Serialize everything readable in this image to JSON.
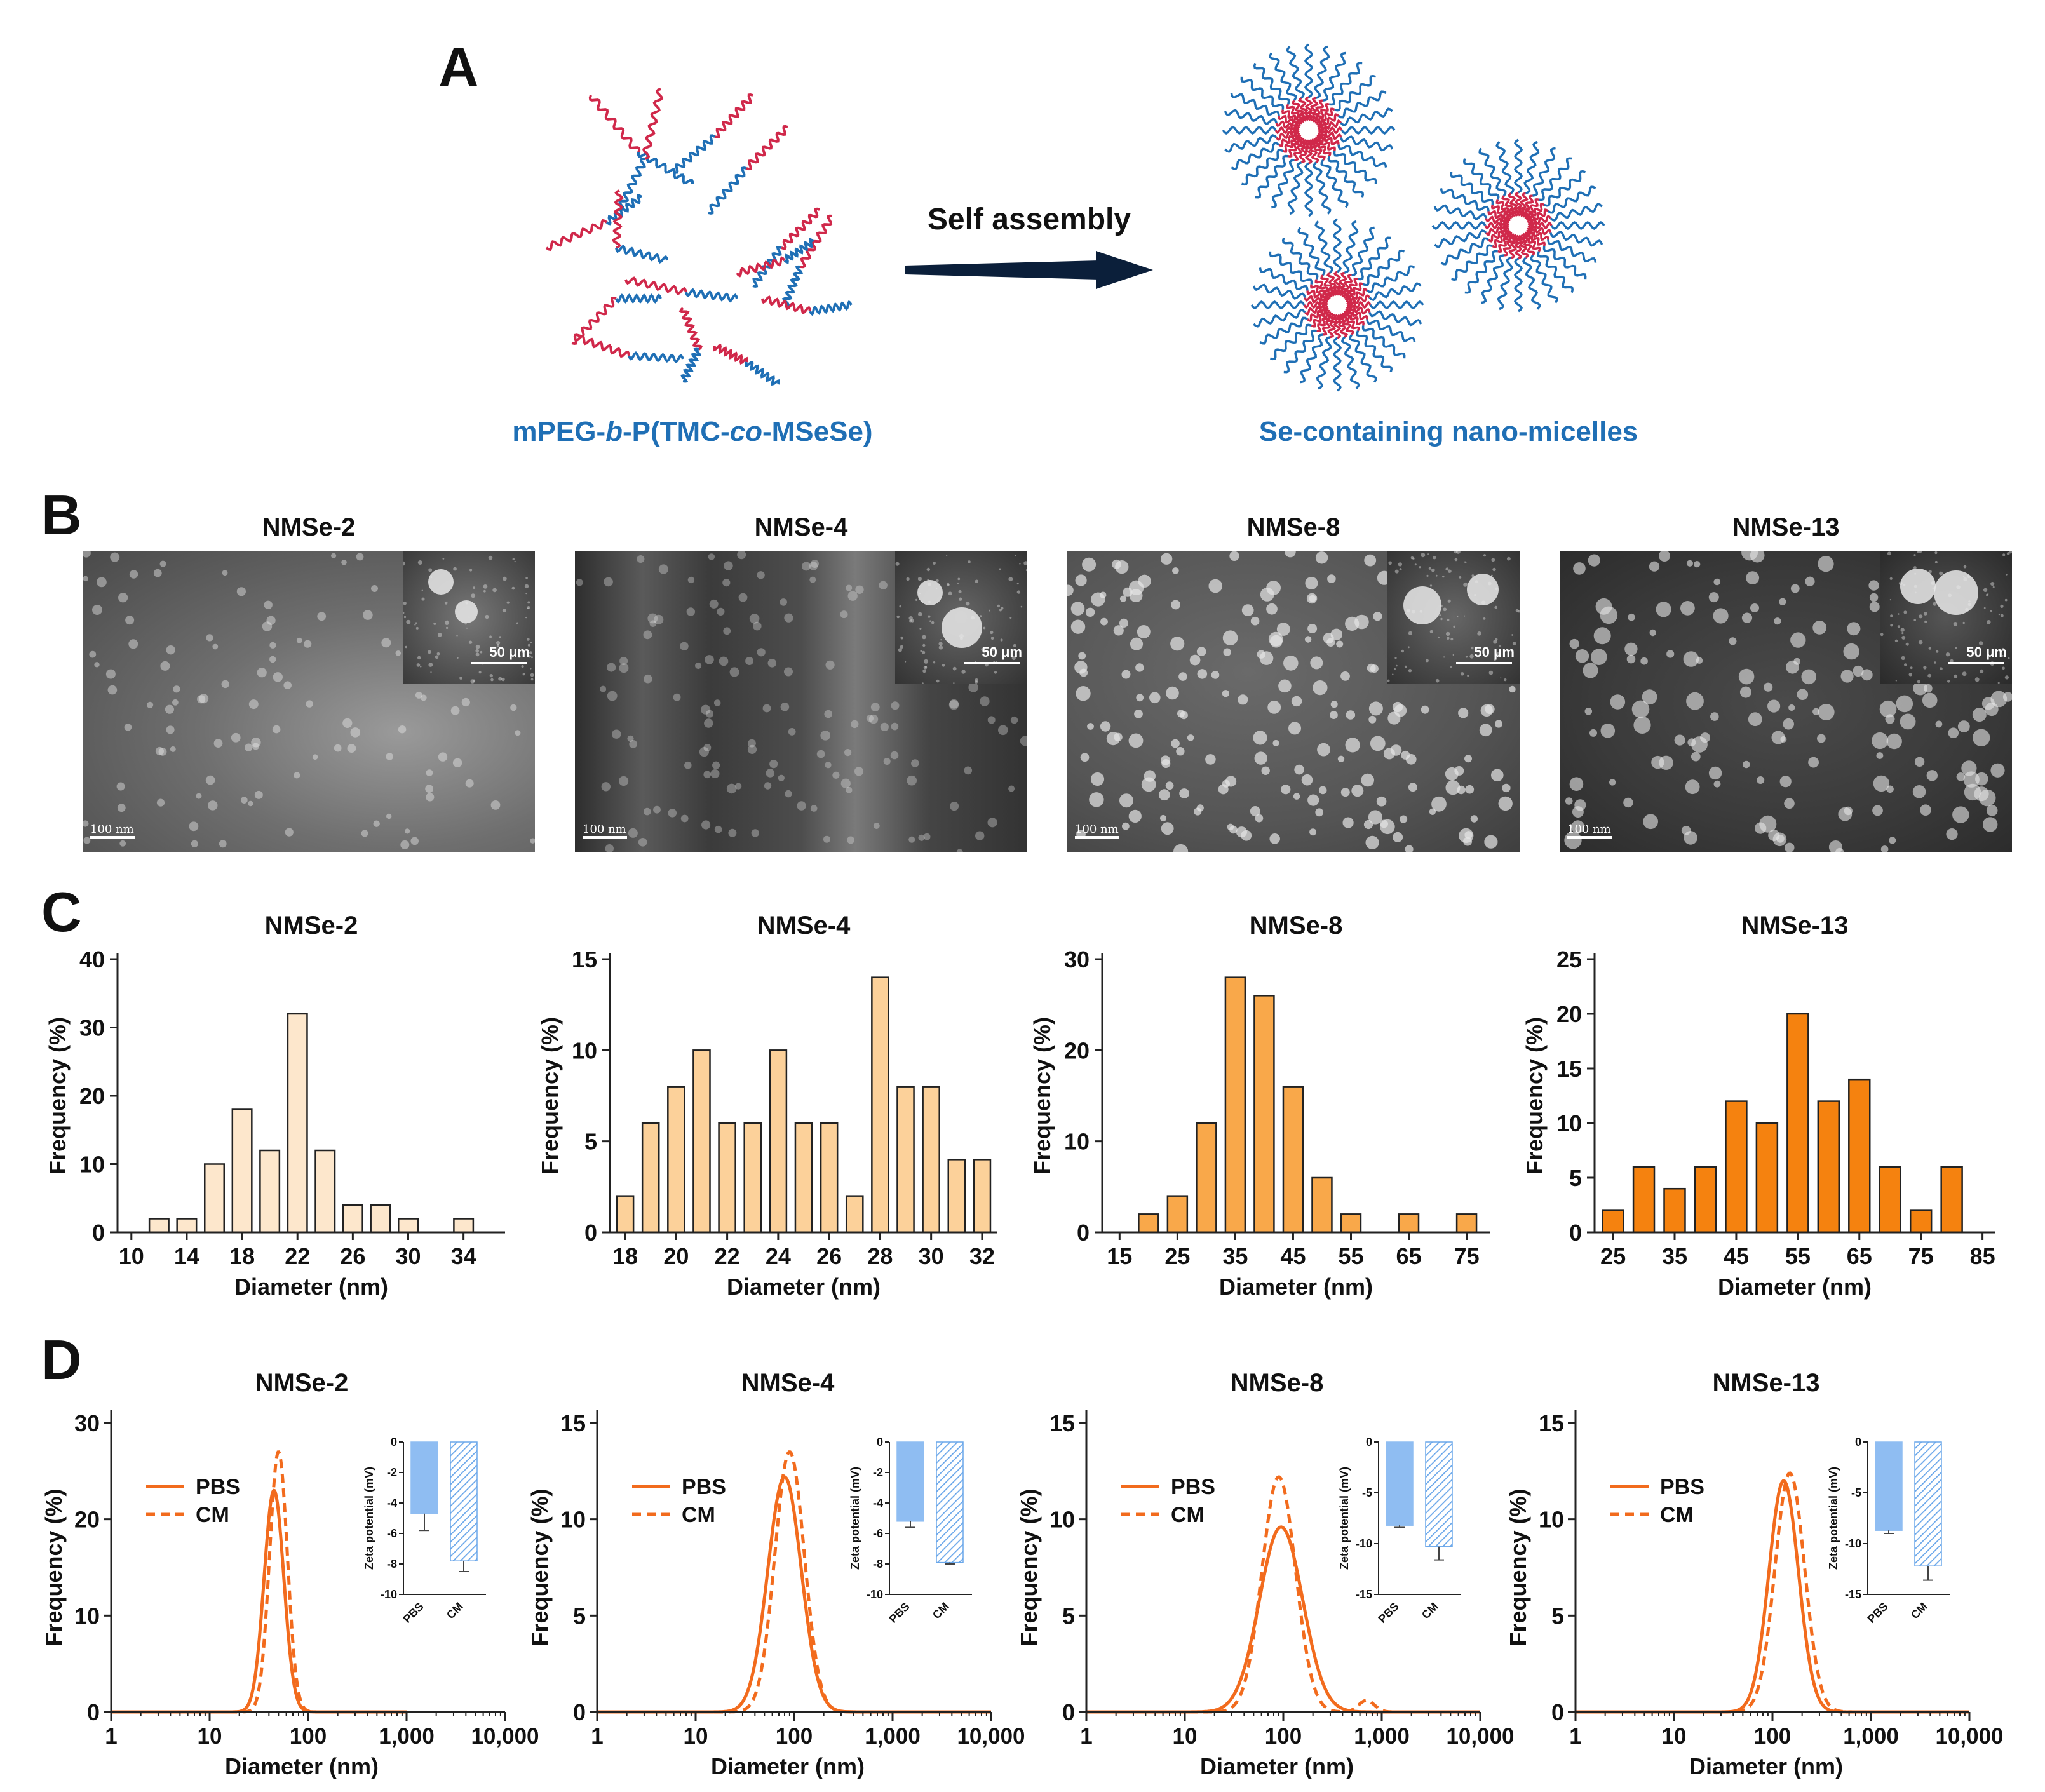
{
  "panels": {
    "A": {
      "letter": "A",
      "arrow_label": "Self assembly",
      "left_label_parts": [
        "mPEG-",
        "b",
        "-P(TMC-",
        "co",
        "-MSeSe)"
      ],
      "right_label": "Se-containing nano-micelles",
      "colors": {
        "hydrophilic": "#1f6fb5",
        "hydrophobic": "#d0284a",
        "arrow": "#0b1f3a"
      }
    },
    "B": {
      "letter": "B",
      "images": [
        {
          "title": "NMSe-2",
          "scale_main": "100 nm",
          "scale_inset": "50 μm"
        },
        {
          "title": "NMSe-4",
          "scale_main": "100 nm",
          "scale_inset": "50 μm"
        },
        {
          "title": "NMSe-8",
          "scale_main": "100 nm",
          "scale_inset": "50 μm"
        },
        {
          "title": "NMSe-13",
          "scale_main": "100 nm",
          "scale_inset": "50 μm"
        }
      ]
    },
    "C": {
      "letter": "C"
    },
    "D": {
      "letter": "D"
    }
  },
  "chart_data": [
    {
      "panel": "C",
      "type": "bar",
      "title": "NMSe-2",
      "xlabel": "Diameter (nm)",
      "ylabel": "Frequency (%)",
      "x": [
        12,
        14,
        16,
        18,
        20,
        22,
        24,
        26,
        28,
        30,
        34
      ],
      "values": [
        2,
        2,
        10,
        18,
        12,
        32,
        12,
        4,
        4,
        2,
        2
      ],
      "bar_width": 1.4,
      "xlim": [
        9,
        37
      ],
      "ylim": [
        0,
        40
      ],
      "xticks": [
        10,
        14,
        18,
        22,
        26,
        30,
        34
      ],
      "yticks": [
        0,
        10,
        20,
        30,
        40
      ],
      "color": "#fde7cc"
    },
    {
      "panel": "C",
      "type": "bar",
      "title": "NMSe-4",
      "xlabel": "Diameter (nm)",
      "ylabel": "Frequency (%)",
      "x": [
        18,
        19,
        20,
        21,
        22,
        23,
        24,
        25,
        26,
        27,
        28,
        29,
        30,
        31,
        32
      ],
      "values": [
        2,
        6,
        8,
        10,
        6,
        6,
        10,
        6,
        6,
        2,
        14,
        8,
        8,
        4,
        4
      ],
      "bar_width": 0.65,
      "xlim": [
        17.4,
        32.6
      ],
      "ylim": [
        0,
        15
      ],
      "xticks": [
        18,
        20,
        22,
        24,
        26,
        28,
        30,
        32
      ],
      "yticks": [
        0,
        5,
        10,
        15
      ],
      "color": "#fcd19a"
    },
    {
      "panel": "C",
      "type": "bar",
      "title": "NMSe-8",
      "xlabel": "Diameter (nm)",
      "ylabel": "Frequency (%)",
      "x": [
        20,
        25,
        30,
        35,
        40,
        45,
        50,
        55,
        65,
        75
      ],
      "values": [
        2,
        4,
        12,
        28,
        26,
        16,
        6,
        2,
        2,
        2
      ],
      "bar_width": 3.4,
      "xlim": [
        12,
        79
      ],
      "ylim": [
        0,
        30
      ],
      "xticks": [
        15,
        25,
        35,
        45,
        55,
        65,
        75
      ],
      "yticks": [
        0,
        10,
        20,
        30
      ],
      "color": "#f9a84a"
    },
    {
      "panel": "C",
      "type": "bar",
      "title": "NMSe-13",
      "xlabel": "Diameter (nm)",
      "ylabel": "Frequency (%)",
      "x": [
        25,
        30,
        35,
        40,
        45,
        50,
        55,
        60,
        65,
        70,
        75,
        80
      ],
      "values": [
        2,
        6,
        4,
        6,
        12,
        10,
        20,
        12,
        14,
        6,
        2,
        6
      ],
      "bar_width": 3.4,
      "xlim": [
        22,
        87
      ],
      "ylim": [
        0,
        25
      ],
      "xticks": [
        25,
        35,
        45,
        55,
        65,
        75,
        85
      ],
      "yticks": [
        0,
        5,
        10,
        15,
        20,
        25
      ],
      "color": "#f5820f"
    },
    {
      "panel": "D",
      "type": "line",
      "title": "NMSe-2",
      "xlabel": "Diameter (nm)",
      "ylabel": "Frequency (%)",
      "x_scale": "log",
      "xlim": [
        1,
        10000
      ],
      "ylim": [
        0,
        30
      ],
      "xticks": [
        1,
        10,
        100,
        1000,
        10000
      ],
      "xtick_labels": [
        "1",
        "10",
        "100",
        "1,000",
        "10,000"
      ],
      "yticks": [
        0,
        10,
        20,
        30
      ],
      "line_xlim": [
        1,
        1000
      ],
      "series": [
        {
          "name": "PBS",
          "style": "solid",
          "peak_diameter": 45,
          "peak_value": 23,
          "log_sigma": 0.1
        },
        {
          "name": "CM",
          "style": "dashed",
          "peak_diameter": 50,
          "peak_value": 27,
          "log_sigma": 0.09
        }
      ],
      "inset": {
        "type": "bar",
        "ylabel": "Zeta potential (mV)",
        "categories": [
          "PBS",
          "CM"
        ],
        "values": [
          -4.7,
          -7.8
        ],
        "errors": [
          1.1,
          0.7
        ],
        "ylim": [
          -10,
          0
        ],
        "yticks": [
          0,
          -2,
          -4,
          -6,
          -8,
          -10
        ]
      },
      "color": "#f26b1d"
    },
    {
      "panel": "D",
      "type": "line",
      "title": "NMSe-4",
      "xlabel": "Diameter (nm)",
      "ylabel": "Frequency (%)",
      "x_scale": "log",
      "xlim": [
        1,
        10000
      ],
      "ylim": [
        0,
        15
      ],
      "xticks": [
        1,
        10,
        100,
        1000,
        10000
      ],
      "xtick_labels": [
        "1",
        "10",
        "100",
        "1,000",
        "10,000"
      ],
      "yticks": [
        0,
        5,
        10,
        15
      ],
      "line_xlim": [
        1,
        10000
      ],
      "series": [
        {
          "name": "PBS",
          "style": "solid",
          "peak_diameter": 80,
          "peak_value": 12.2,
          "log_sigma": 0.17
        },
        {
          "name": "CM",
          "style": "dashed",
          "peak_diameter": 90,
          "peak_value": 13.5,
          "log_sigma": 0.15
        }
      ],
      "inset": {
        "type": "bar",
        "ylabel": "Zeta potential (mV)",
        "categories": [
          "PBS",
          "CM"
        ],
        "values": [
          -5.2,
          -7.9
        ],
        "errors": [
          0.4,
          0.1
        ],
        "ylim": [
          -10,
          0
        ],
        "yticks": [
          0,
          -2,
          -4,
          -6,
          -8,
          -10
        ]
      },
      "color": "#f26b1d"
    },
    {
      "panel": "D",
      "type": "line",
      "title": "NMSe-8",
      "xlabel": "Diameter (nm)",
      "ylabel": "Frequency (%)",
      "x_scale": "log",
      "xlim": [
        1,
        10000
      ],
      "ylim": [
        0,
        15
      ],
      "xticks": [
        1,
        10,
        100,
        1000,
        10000
      ],
      "xtick_labels": [
        "1",
        "10",
        "100",
        "1,000",
        "10,000"
      ],
      "yticks": [
        0,
        5,
        10,
        15
      ],
      "line_xlim": [
        1,
        10000
      ],
      "series": [
        {
          "name": "PBS",
          "style": "solid",
          "peak_diameter": 95,
          "peak_value": 9.6,
          "log_sigma": 0.22
        },
        {
          "name": "CM",
          "style": "dashed",
          "peak_diameter": 90,
          "peak_value": 12.2,
          "log_sigma": 0.17,
          "secondary_peak_diameter": 700,
          "secondary_peak_value": 0.6
        }
      ],
      "inset": {
        "type": "bar",
        "ylabel": "Zeta potential (mV)",
        "categories": [
          "PBS",
          "CM"
        ],
        "values": [
          -8.2,
          -10.3
        ],
        "errors": [
          0.2,
          1.3
        ],
        "ylim": [
          -15,
          0
        ],
        "yticks": [
          0,
          -5,
          -10,
          -15
        ]
      },
      "color": "#f26b1d"
    },
    {
      "panel": "D",
      "type": "line",
      "title": "NMSe-13",
      "xlabel": "Diameter (nm)",
      "ylabel": "Frequency (%)",
      "x_scale": "log",
      "xlim": [
        1,
        10000
      ],
      "ylim": [
        0,
        15
      ],
      "xticks": [
        1,
        10,
        100,
        1000,
        10000
      ],
      "xtick_labels": [
        "1",
        "10",
        "100",
        "1,000",
        "10,000"
      ],
      "yticks": [
        0,
        5,
        10,
        15
      ],
      "line_xlim": [
        1,
        10000
      ],
      "series": [
        {
          "name": "PBS",
          "style": "solid",
          "peak_diameter": 130,
          "peak_value": 12,
          "log_sigma": 0.15
        },
        {
          "name": "CM",
          "style": "dashed",
          "peak_diameter": 150,
          "peak_value": 12.4,
          "log_sigma": 0.15
        }
      ],
      "inset": {
        "type": "bar",
        "ylabel": "Zeta potential (mV)",
        "categories": [
          "PBS",
          "CM"
        ],
        "values": [
          -8.7,
          -12.2
        ],
        "errors": [
          0.3,
          1.4
        ],
        "ylim": [
          -15,
          0
        ],
        "yticks": [
          0,
          -5,
          -10,
          -15
        ]
      },
      "color": "#f26b1d"
    }
  ]
}
